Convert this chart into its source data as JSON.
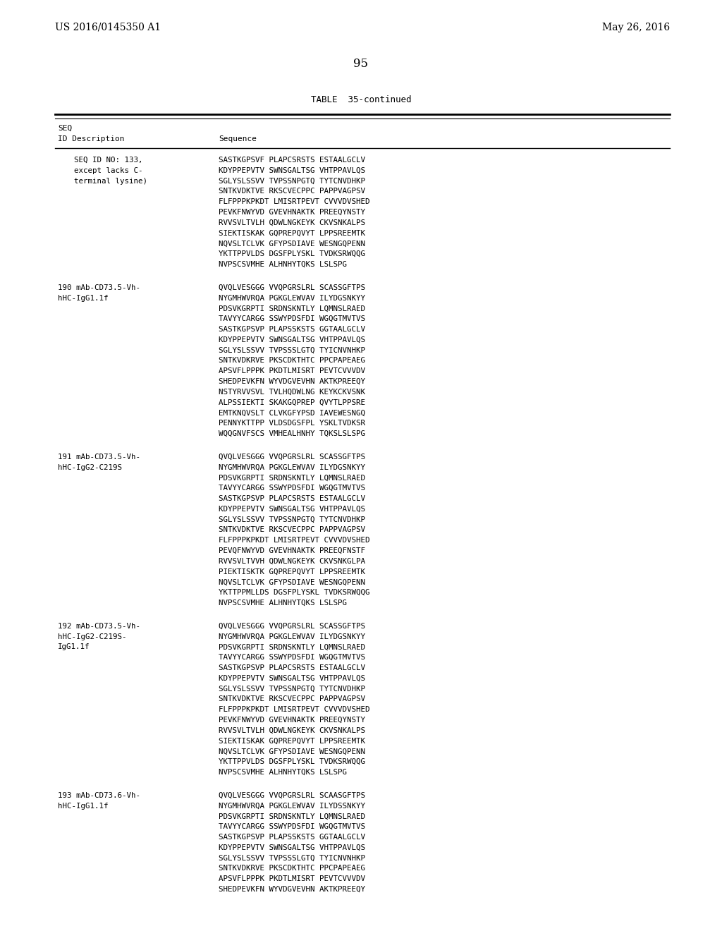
{
  "header_left": "US 2016/0145350 A1",
  "header_right": "May 26, 2016",
  "page_number": "95",
  "table_title": "TABLE  35-continued",
  "background_color": "#ffffff",
  "text_color": "#000000",
  "entries": [
    {
      "id_desc": [
        "SEQ ID NO: 133,",
        "except lacks C-",
        "terminal lysine)"
      ],
      "sequence_lines": [
        "SASTKGPSVF PLAPCSRSTS ESTAALGCLV",
        "KDYPPEPVTV SWNSGALTSG VHTPPAVLQS",
        "SGLYSLSSVV TVPSSNPGTQ TYTCNVDHKP",
        "SNTKVDKTVE RKSCVECPPC PAPPVAGPSV",
        "FLFPPPKPKDT LMISRTPEVT CVVVDVSHED",
        "PEVKFNWYVD GVEVHNAKTK PREEQYNSTY",
        "RVVSVLTVLH QDWLNGKEYK CKVSNKALPS",
        "SIEKTISKAK GQPREPQVYT LPPSREEMTK",
        "NQVSLTCLVK GFYPSDIAVE WESNGQPENN",
        "YKTTPPVLDS DGSFPLYSKL TVDKSRWQQG",
        "NVPSCSVMHE ALHNHYTQKS LSLSPG"
      ]
    },
    {
      "id_desc": [
        "190 mAb-CD73.5-Vh-",
        "hHC-IgG1.1f"
      ],
      "sequence_lines": [
        "QVQLVESGGG VVQPGRSLRL SCASSGFTPS",
        "NYGMHWVRQA PGKGLEWVAV ILYDGSNKYY",
        "PDSVKGRPTI SRDNSKNTLY LQMNSLRAED",
        "TAVYYCARGG SSWYPDSFDI WGQGTMVTVS",
        "SASTKGPSVP PLAPSSKSTS GGTAALGCLV",
        "KDYPPEPVTV SWNSGALTSG VHTPPAVLQS",
        "SGLYSLSSVV TVPSSSLGTQ TYICNVNHKP",
        "SNTKVDKRVE PKSCDKTHTC PPCPAPEAEG",
        "APSVFLPPPK PKDTLMISRT PEVTCVVVDV",
        "SHEDPEVKFN WYVDGVEVHN AKTKPREEQY",
        "NSTYRVVSVL TVLHQDWLNG KEYKCKVSNK",
        "ALPSSIEKTI SKAKGQPREP QVYTLPPSRE",
        "EMTKNQVSLT CLVKGFYPSD IAVEWESNGQ",
        "PENNYKTTPP VLDSDGSFPL YSKLTVDKSR",
        "WQQGNVFSCS VMHEALHNHY TQKSLSLSPG"
      ]
    },
    {
      "id_desc": [
        "191 mAb-CD73.5-Vh-",
        "hHC-IgG2-C219S"
      ],
      "sequence_lines": [
        "QVQLVESGGG VVQPGRSLRL SCASSGFTPS",
        "NYGMHWVRQA PGKGLEWVAV ILYDGSNKYY",
        "PDSVKGRPTI SRDNSKNTLY LQMNSLRAED",
        "TAVYYCARGG SSWYPDSFDI WGQGTMVTVS",
        "SASTKGPSVP PLAPCSRSTS ESTAALGCLV",
        "KDYPPEPVTV SWNSGALTSG VHTPPAVLQS",
        "SGLYSLSSVV TVPSSNPGTQ TYTCNVDHKP",
        "SNTKVDKTVE RKSCVECPPC PAPPVAGPSV",
        "FLFPPPKPKDT LMISRTPEVT CVVVDVSHED",
        "PEVQFNWYVD GVEVHNAKTK PREEQFNSTF",
        "RVVSVLTVVH QDWLNGKEYK CKVSNKGLPA",
        "PIEKTISKTK GQPREPQVYT LPPSREEMTK",
        "NQVSLTCLVK GFYPSDIAVE WESNGQPENN",
        "YKTTPPMLLDS DGSFPLYSKL TVDKSRWQQG",
        "NVPSCSVMHE ALHNHYTQKS LSLSPG"
      ]
    },
    {
      "id_desc": [
        "192 mAb-CD73.5-Vh-",
        "hHC-IgG2-C219S-",
        "IgG1.1f"
      ],
      "sequence_lines": [
        "QVQLVESGGG VVQPGRSLRL SCASSGFTPS",
        "NYGMHWVRQA PGKGLEWVAV ILYDGSNKYY",
        "PDSVKGRPTI SRDNSKNTLY LQMNSLRAED",
        "TAVYYCARGG SSWYPDSFDI WGQGTMVTVS",
        "SASTKGPSVP PLAPCSRSTS ESTAALGCLV",
        "KDYPPEPVTV SWNSGALTSG VHTPPAVLQS",
        "SGLYSLSSVV TVPSSNPGTQ TYTCNVDHKP",
        "SNTKVDKTVE RKSCVECPPC PAPPVAGPSV",
        "FLFPPPKPKDT LMISRTPEVT CVVVDVSHED",
        "PEVKFNWYVD GVEVHNAKTK PREEQYNSTY",
        "RVVSVLTVLH QDWLNGKEYK CKVSNKALPS",
        "SIEKTISKAK GQPREPQVYT LPPSREEMTK",
        "NQVSLTCLVK GFYPSDIAVE WESNGQPENN",
        "YKTTPPVLDS DGSFPLYSKL TVDKSRWQQG",
        "NVPSCSVMHE ALHNHYTQKS LSLSPG"
      ]
    },
    {
      "id_desc": [
        "193 mAb-CD73.6-Vh-",
        "hHC-IgG1.1f"
      ],
      "sequence_lines": [
        "QVQLVESGGG VVQPGRSLRL SCAASGFTPS",
        "NYGMHWVRQA PGKGLEWVAV ILYDSSNKYY",
        "PDSVKGRPTI SRDNSKNTLY LQMNSLRAED",
        "TAVYYCARGG SSWYPDSFDI WGQGTMVTVS",
        "SASTKGPSVP PLAPSSKSTS GGTAALGCLV",
        "KDYPPEPVTV SWNSGALTSG VHTPPAVLQS",
        "SGLYSLSSVV TVPSSSLGTQ TYICNVNHKP",
        "SNTKVDKRVE PKSCDKTHTC PPCPAPEAEG",
        "APSVFLPPPK PKDTLMISRT PEVTCVVVDV",
        "SHEDPEVKFN WYVDGVEVHN AKTKPREEQY"
      ]
    }
  ]
}
